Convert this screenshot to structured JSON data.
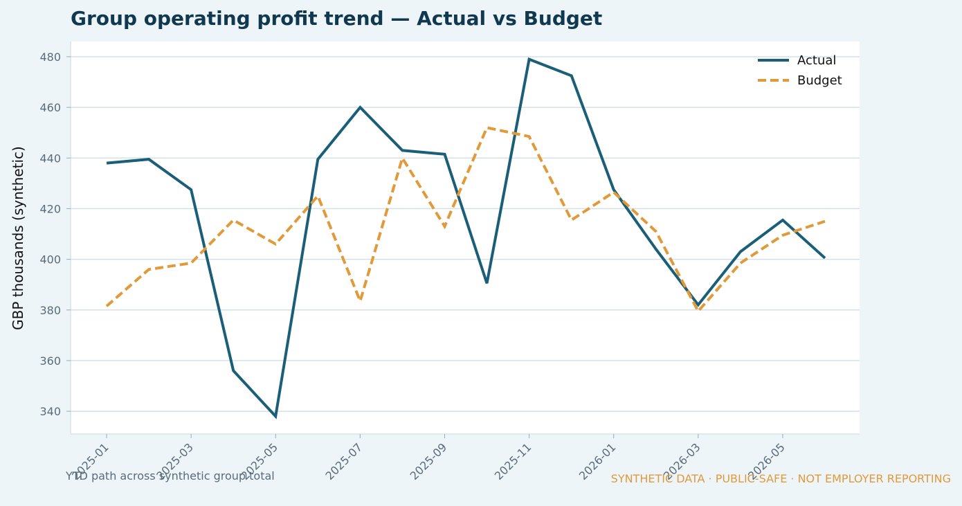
{
  "chart_data": {
    "type": "line",
    "title": "Group operating profit trend — Actual vs Budget",
    "xlabel": "",
    "ylabel": "GBP thousands (synthetic)",
    "x": [
      "2025-01",
      "2025-02",
      "2025-03",
      "2025-04",
      "2025-05",
      "2025-06",
      "2025-07",
      "2025-08",
      "2025-09",
      "2025-10",
      "2025-11",
      "2025-12",
      "2026-01",
      "2026-02",
      "2026-03",
      "2026-04",
      "2026-05",
      "2026-06"
    ],
    "x_tick_labels": [
      "2025-01",
      "2025-03",
      "2025-05",
      "2025-07",
      "2025-09",
      "2025-11",
      "2026-01",
      "2026-03",
      "2026-05"
    ],
    "y_ticks": [
      340,
      360,
      380,
      400,
      420,
      440,
      460,
      480
    ],
    "ylim": [
      331,
      486
    ],
    "grid": "horizontal",
    "legend_position": "top-right",
    "series": [
      {
        "name": "Actual",
        "color": "#1b5e78",
        "style": "solid",
        "values": [
          438,
          439.5,
          427.5,
          356,
          338,
          439.5,
          460,
          443,
          441.5,
          390.5,
          479,
          472.5,
          427.5,
          404,
          382,
          403,
          415.5,
          400.5
        ]
      },
      {
        "name": "Budget",
        "color": "#e09a3a",
        "style": "dashed",
        "values": [
          381.5,
          396,
          398.5,
          415.5,
          406,
          425,
          383.5,
          440,
          413,
          452,
          448.5,
          415.5,
          426.5,
          411,
          379.5,
          398.5,
          409.5,
          415
        ]
      }
    ],
    "annotations": {
      "footnote": "YTD path across synthetic group total",
      "disclaimer": "SYNTHETIC DATA · PUBLIC-SAFE · NOT EMPLOYER REPORTING"
    }
  }
}
